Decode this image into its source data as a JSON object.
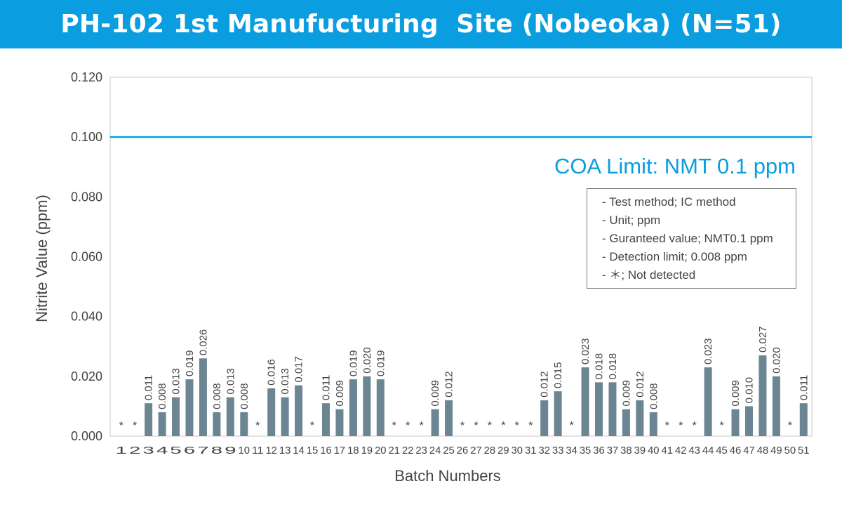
{
  "header": {
    "title": "PH-102 1st Manufucturing  Site (Nobeoka) (N=51)"
  },
  "legend_notes": [
    "- Test method; IC method",
    "- Unit; ppm",
    "- Guranteed value; NMT0.1 ppm",
    "- Detection limit; 0.008 ppm",
    "- ＊; Not detected"
  ],
  "colors": {
    "header": "#0a9ee0",
    "bar": "#6b8593",
    "limit_line": "#0a9ee0",
    "text": "#444444"
  },
  "chart_data": {
    "type": "bar",
    "title": "PH-102 1st Manufucturing  Site (Nobeoka) (N=51)",
    "xlabel": "Batch Numbers",
    "ylabel": "Nitrite Value (ppm)",
    "ylim": [
      0,
      0.12
    ],
    "yticks": [
      "0.000",
      "0.020",
      "0.040",
      "0.060",
      "0.080",
      "0.100",
      "0.120"
    ],
    "grid": false,
    "categories": [
      "1",
      "2",
      "3",
      "4",
      "5",
      "6",
      "7",
      "8",
      "9",
      "10",
      "11",
      "12",
      "13",
      "14",
      "15",
      "16",
      "17",
      "18",
      "19",
      "20",
      "21",
      "22",
      "23",
      "24",
      "25",
      "26",
      "27",
      "28",
      "29",
      "30",
      "31",
      "32",
      "33",
      "34",
      "35",
      "36",
      "37",
      "38",
      "39",
      "40",
      "41",
      "42",
      "43",
      "44",
      "45",
      "46",
      "47",
      "48",
      "49",
      "50",
      "51"
    ],
    "values": [
      null,
      null,
      0.011,
      0.008,
      0.013,
      0.019,
      0.026,
      0.008,
      0.013,
      0.008,
      null,
      0.016,
      0.013,
      0.017,
      null,
      0.011,
      0.009,
      0.019,
      0.02,
      0.019,
      null,
      null,
      null,
      0.009,
      0.012,
      null,
      null,
      null,
      null,
      null,
      null,
      0.012,
      0.015,
      null,
      0.023,
      0.018,
      0.018,
      0.009,
      0.012,
      0.008,
      null,
      null,
      null,
      0.023,
      null,
      0.009,
      0.01,
      0.027,
      0.02,
      null,
      0.011
    ],
    "data_labels": [
      "*",
      "*",
      "0.011",
      "0.008",
      "0.013",
      "0.019",
      "0.026",
      "0.008",
      "0.013",
      "0.008",
      "*",
      "0.016",
      "0.013",
      "0.017",
      "*",
      "0.011",
      "0.009",
      "0.019",
      "0.020",
      "0.019",
      "*",
      "*",
      "*",
      "0.009",
      "0.012",
      "*",
      "*",
      "*",
      "*",
      "*",
      "*",
      "0.012",
      "0.015",
      "*",
      "0.023",
      "0.018",
      "0.018",
      "0.009",
      "0.012",
      "0.008",
      "*",
      "*",
      "*",
      "0.023",
      "*",
      "0.009",
      "0.010",
      "0.027",
      "0.020",
      "*",
      "0.011"
    ],
    "limit": {
      "value": 0.1,
      "label": "COA Limit: NMT 0.1 ppm"
    }
  }
}
